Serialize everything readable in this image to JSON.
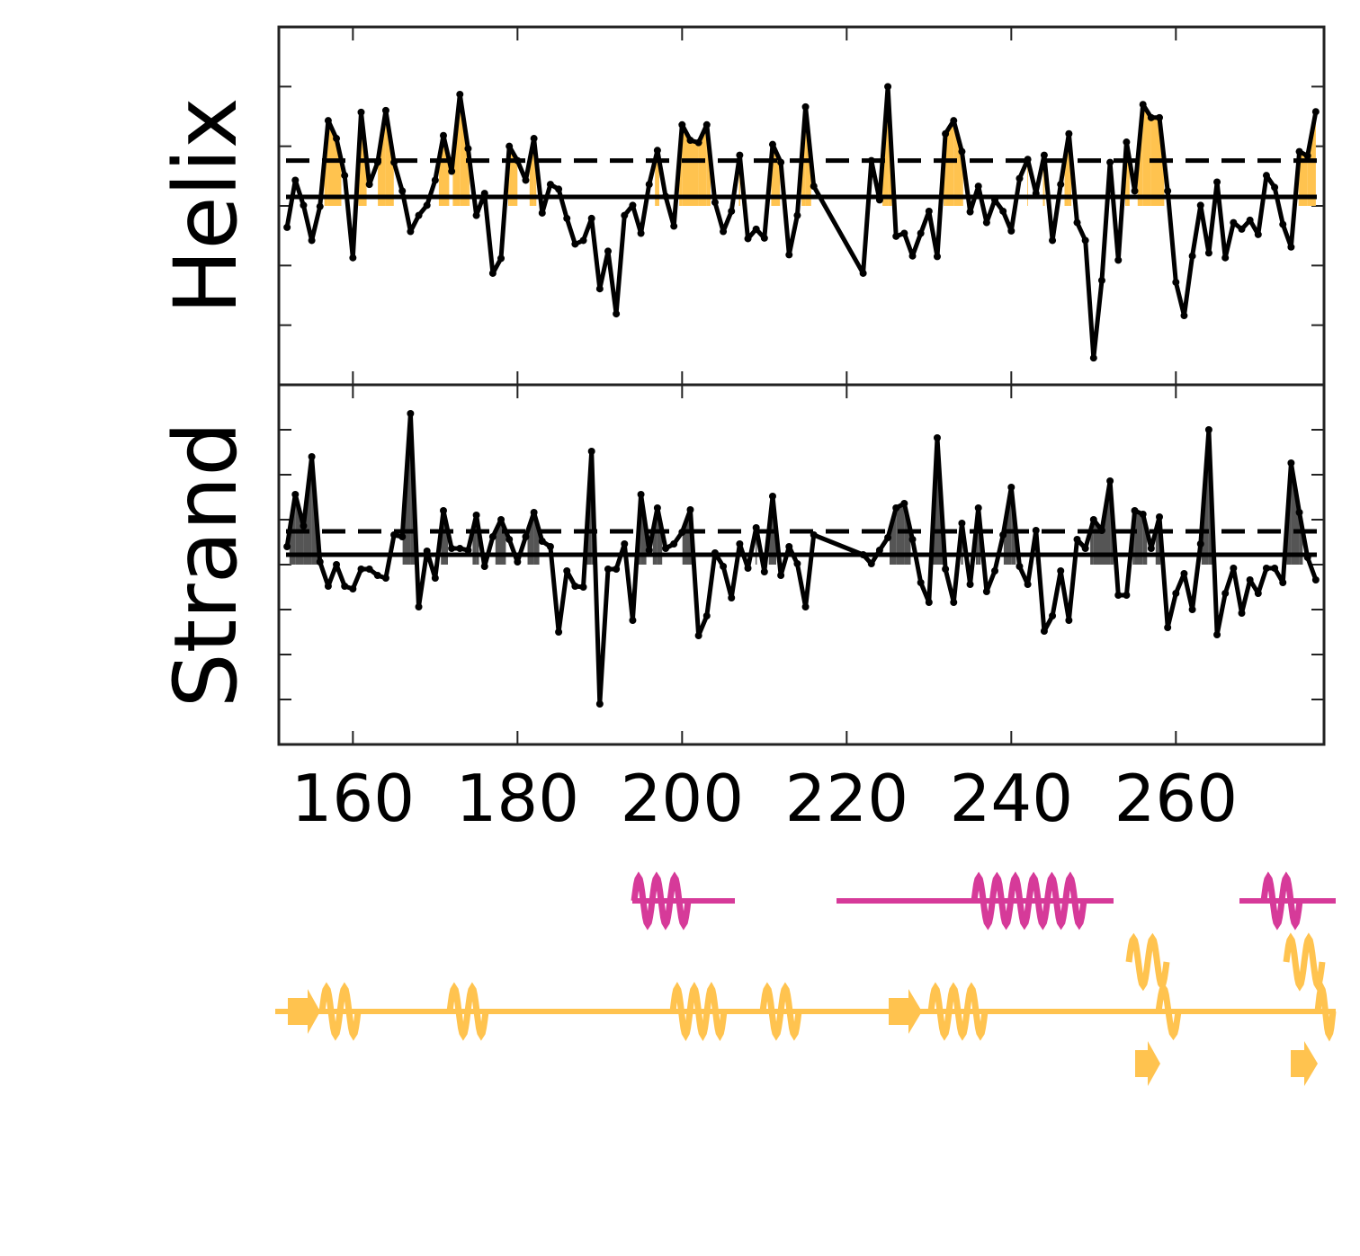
{
  "chart_data": [
    {
      "type": "line",
      "ylabel": "Helix",
      "x": [
        152,
        153,
        154,
        155,
        156,
        157,
        158,
        159,
        160,
        161,
        162,
        163,
        164,
        165,
        166,
        167,
        168,
        169,
        170,
        171,
        172,
        173,
        174,
        175,
        176,
        177,
        178,
        179,
        180,
        181,
        182,
        183,
        184,
        185,
        186,
        187,
        188,
        189,
        190,
        191,
        192,
        193,
        194,
        195,
        196,
        197,
        198,
        199,
        200,
        201,
        202,
        203,
        204,
        205,
        206,
        207,
        208,
        209,
        210,
        211,
        212,
        213,
        214,
        215,
        216,
        222,
        223,
        224,
        225,
        226,
        227,
        228,
        229,
        230,
        231,
        232,
        233,
        234,
        235,
        236,
        237,
        238,
        239,
        240,
        241,
        242,
        243,
        244,
        245,
        246,
        247,
        248,
        249,
        250,
        251,
        252,
        253,
        254,
        255,
        256,
        257,
        258,
        259,
        260,
        261,
        262,
        263,
        264,
        265,
        266,
        267,
        268,
        269,
        270,
        271,
        272,
        273,
        274,
        275,
        276,
        277
      ],
      "values": [
        -0.36,
        0.43,
        0.01,
        -0.58,
        -0.01,
        1.43,
        1.13,
        0.51,
        -0.87,
        1.57,
        0.36,
        0.73,
        1.6,
        0.73,
        0.25,
        -0.43,
        -0.16,
        0.01,
        0.43,
        1.18,
        0.58,
        1.87,
        0.96,
        -0.16,
        0.21,
        -1.13,
        -0.88,
        1.0,
        0.76,
        0.43,
        1.13,
        -0.12,
        0.36,
        0.28,
        -0.21,
        -0.64,
        -0.58,
        -0.21,
        -1.39,
        -0.76,
        -1.81,
        -0.16,
        0.01,
        -0.46,
        0.36,
        0.93,
        0.16,
        -0.34,
        1.36,
        1.1,
        1.06,
        1.36,
        0.06,
        -0.43,
        -0.09,
        0.85,
        -0.55,
        -0.39,
        -0.54,
        1.03,
        0.73,
        -0.82,
        -0.16,
        1.66,
        0.33,
        -1.13,
        0.76,
        0.1,
        2.0,
        -0.51,
        -0.46,
        -0.84,
        -0.46,
        -0.09,
        -0.85,
        1.21,
        1.43,
        0.91,
        -0.1,
        0.33,
        -0.28,
        0.1,
        -0.09,
        -0.42,
        0.46,
        0.78,
        0.21,
        0.85,
        -0.58,
        0.36,
        1.21,
        -0.28,
        -0.58,
        -2.55,
        -1.25,
        0.73,
        -0.91,
        1.07,
        0.25,
        1.7,
        1.48,
        1.48,
        0.25,
        -1.28,
        -1.84,
        -0.84,
        0.01,
        -0.79,
        0.4,
        -0.87,
        -0.28,
        -0.39,
        -0.24,
        -0.48,
        0.51,
        0.31,
        -0.31,
        -0.69,
        0.91,
        0.84,
        1.58
      ],
      "color": "#000000",
      "fill_color": "#ffc34f",
      "hlines": [
        0.15,
        0.76
      ],
      "xlim": [
        151,
        278
      ],
      "xticks": [
        160,
        180,
        200,
        220,
        240,
        260
      ],
      "ylim": [
        -3,
        3
      ],
      "yticks": [
        -2,
        -1,
        0,
        1,
        2
      ]
    },
    {
      "type": "line",
      "ylabel": "Strand",
      "x": [
        152,
        153,
        154,
        155,
        156,
        157,
        158,
        159,
        160,
        161,
        162,
        163,
        164,
        165,
        166,
        167,
        168,
        169,
        170,
        171,
        172,
        173,
        174,
        175,
        176,
        177,
        178,
        179,
        180,
        181,
        182,
        183,
        184,
        185,
        186,
        187,
        188,
        189,
        190,
        191,
        192,
        193,
        194,
        195,
        196,
        197,
        198,
        199,
        200,
        201,
        202,
        203,
        204,
        205,
        206,
        207,
        208,
        209,
        210,
        211,
        212,
        213,
        214,
        215,
        216,
        222,
        223,
        224,
        225,
        226,
        227,
        228,
        229,
        230,
        231,
        232,
        233,
        234,
        235,
        236,
        237,
        238,
        239,
        240,
        241,
        242,
        243,
        244,
        245,
        246,
        247,
        248,
        249,
        250,
        251,
        252,
        253,
        254,
        255,
        256,
        257,
        258,
        259,
        260,
        261,
        262,
        263,
        264,
        265,
        266,
        267,
        268,
        269,
        270,
        271,
        272,
        273,
        274,
        275,
        276,
        277
      ],
      "values": [
        0.4,
        1.56,
        0.86,
        2.4,
        0.06,
        -0.48,
        0,
        -0.48,
        -0.54,
        -0.1,
        -0.1,
        -0.24,
        -0.3,
        0.66,
        0.62,
        3.36,
        -0.94,
        0.3,
        -0.3,
        1.2,
        0.36,
        0.36,
        0.32,
        1.1,
        -0.04,
        0.62,
        1.0,
        0.56,
        0.06,
        0.62,
        1.16,
        0.52,
        0.4,
        -1.5,
        -0.14,
        -0.48,
        -0.5,
        2.52,
        -3.1,
        -0.1,
        -0.1,
        0.46,
        -1.24,
        1.56,
        0.32,
        1.26,
        0.36,
        0.46,
        0.72,
        1.22,
        -1.58,
        -1.14,
        0.26,
        -0.04,
        -0.74,
        0.46,
        -0.08,
        0.82,
        -0.16,
        1.52,
        -0.24,
        0.4,
        0.02,
        -0.94,
        0.66,
        0.22,
        0.02,
        0.32,
        0.6,
        1.26,
        1.36,
        0.56,
        -0.4,
        -0.84,
        2.82,
        -0.1,
        -0.84,
        0.92,
        -0.44,
        1.26,
        -0.6,
        -0.14,
        0.66,
        1.72,
        -0.04,
        -0.44,
        0.76,
        -1.48,
        -1.14,
        -0.14,
        -1.24,
        0.56,
        0.36,
        1.0,
        0.76,
        1.86,
        -0.68,
        -0.68,
        1.2,
        1.12,
        0.36,
        1.06,
        -1.4,
        -0.64,
        -0.2,
        -1.0,
        0.46,
        3.0,
        -1.56,
        -0.64,
        -0.08,
        -1.08,
        -0.34,
        -0.64,
        -0.08,
        -0.08,
        -0.4,
        2.26,
        1.16,
        0.16,
        -0.34
      ],
      "color": "#000000",
      "fill_color": "#555555",
      "hlines": [
        0.22,
        0.74
      ],
      "xlim": [
        151,
        278
      ],
      "xticks": [
        160,
        180,
        200,
        220,
        240,
        260
      ],
      "ylim": [
        -4,
        4
      ],
      "yticks": [
        -3,
        -2,
        -1,
        0,
        1,
        2,
        3
      ]
    }
  ]
}
